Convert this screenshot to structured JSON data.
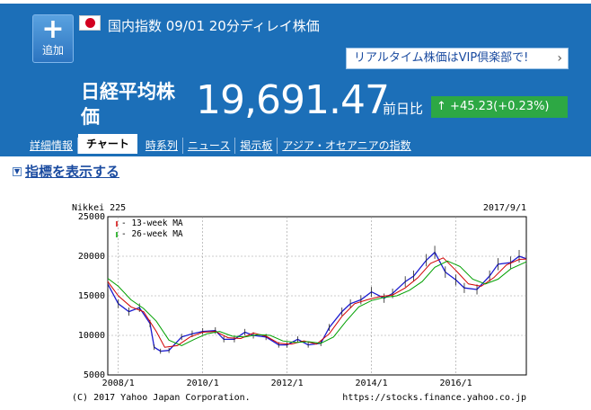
{
  "header": {
    "add_button": {
      "icon": "plus-icon",
      "label": "追加"
    },
    "flag": "japan-flag-icon",
    "title": "国内指数 09/01 20分ディレイ株価",
    "vip_link": "リアルタイム株価はVIP倶楽部で!",
    "stock_name": "日経平均株価",
    "price": "19,691.47",
    "change_label": "前日比",
    "change_value": "+45.23(+0.23%)",
    "change_icon": "up-arrow-icon",
    "colors": {
      "header_bg": "#1c6fb8",
      "badge_bg": "#2da844"
    }
  },
  "tabs": [
    {
      "label": "詳細情報",
      "active": false
    },
    {
      "label": "チャート",
      "active": true
    },
    {
      "label": "時系列",
      "active": false
    },
    {
      "label": "ニュース",
      "active": false
    },
    {
      "label": "掲示板",
      "active": false
    },
    {
      "label": "アジア・オセアニアの指数",
      "active": false
    }
  ],
  "indicator_toggle": {
    "icon": "expand-box-icon",
    "label": "指標を表示する"
  },
  "chart_data": {
    "type": "line",
    "title": "Nikkei 225",
    "date_label": "2017/9/1",
    "copyright": "(C) 2017 Yahoo Japan Corporation.",
    "source_url": "https://stocks.finance.yahoo.co.jp",
    "ylim": [
      5000,
      25000
    ],
    "y_ticks": [
      5000,
      10000,
      15000,
      20000,
      25000
    ],
    "xlim": [
      2007.75,
      2017.67
    ],
    "x_ticks": [
      {
        "x": 2008.0,
        "label": "2008/1"
      },
      {
        "x": 2010.0,
        "label": "2010/1"
      },
      {
        "x": 2012.0,
        "label": "2012/1"
      },
      {
        "x": 2014.0,
        "label": "2014/1"
      },
      {
        "x": 2016.0,
        "label": "2016/1"
      }
    ],
    "legend": [
      {
        "name": "13-week MA",
        "color": "#d00000"
      },
      {
        "name": "26-week MA",
        "color": "#00a000"
      }
    ],
    "legend_position": "top-left",
    "grid": true,
    "series": [
      {
        "name": "Nikkei 225",
        "x": [
          2007.75,
          2008.0,
          2008.25,
          2008.5,
          2008.75,
          2008.85,
          2009.0,
          2009.2,
          2009.5,
          2009.75,
          2010.0,
          2010.3,
          2010.5,
          2010.75,
          2011.0,
          2011.2,
          2011.5,
          2011.8,
          2012.0,
          2012.25,
          2012.5,
          2012.8,
          2013.0,
          2013.3,
          2013.5,
          2013.75,
          2014.0,
          2014.3,
          2014.5,
          2014.8,
          2015.0,
          2015.3,
          2015.5,
          2015.75,
          2016.0,
          2016.2,
          2016.5,
          2016.8,
          2017.0,
          2017.3,
          2017.5,
          2017.67
        ],
        "y": [
          16500,
          14000,
          13000,
          13500,
          11500,
          8500,
          8000,
          8100,
          9800,
          10200,
          10500,
          10600,
          9500,
          9500,
          10400,
          10000,
          9800,
          8800,
          8800,
          9500,
          8800,
          9000,
          11000,
          13000,
          14000,
          14500,
          15500,
          14700,
          15300,
          16800,
          17500,
          19500,
          20500,
          18000,
          17000,
          16000,
          15800,
          17500,
          19000,
          19200,
          20000,
          19691
        ]
      },
      {
        "name": "13-week MA",
        "x": [
          2007.75,
          2008.0,
          2008.3,
          2008.6,
          2008.9,
          2009.1,
          2009.4,
          2009.7,
          2010.0,
          2010.3,
          2010.6,
          2010.9,
          2011.2,
          2011.5,
          2011.8,
          2012.1,
          2012.4,
          2012.7,
          2013.0,
          2013.3,
          2013.6,
          2013.9,
          2014.2,
          2014.5,
          2014.8,
          2015.1,
          2015.4,
          2015.7,
          2016.0,
          2016.3,
          2016.6,
          2016.9,
          2017.2,
          2017.5,
          2017.67
        ],
        "y": [
          16800,
          15000,
          13600,
          13000,
          10500,
          8500,
          8700,
          9800,
          10400,
          10500,
          9700,
          9600,
          10300,
          9900,
          9000,
          8900,
          9300,
          8900,
          10200,
          12400,
          14000,
          14500,
          14900,
          15100,
          16000,
          17300,
          19100,
          19800,
          18200,
          16500,
          16200,
          17300,
          18900,
          19600,
          19650
        ]
      },
      {
        "name": "26-week MA",
        "x": [
          2007.75,
          2008.0,
          2008.3,
          2008.6,
          2008.9,
          2009.2,
          2009.5,
          2009.8,
          2010.1,
          2010.4,
          2010.7,
          2011.0,
          2011.3,
          2011.6,
          2011.9,
          2012.2,
          2012.5,
          2012.8,
          2013.1,
          2013.4,
          2013.7,
          2014.0,
          2014.3,
          2014.6,
          2014.9,
          2015.2,
          2015.5,
          2015.8,
          2016.1,
          2016.4,
          2016.7,
          2017.0,
          2017.3,
          2017.67
        ],
        "y": [
          17200,
          16200,
          14500,
          13400,
          11800,
          9400,
          8700,
          9500,
          10200,
          10500,
          9900,
          9800,
          10100,
          10000,
          9300,
          9100,
          9200,
          9000,
          9800,
          11800,
          13600,
          14400,
          14800,
          15000,
          15700,
          16800,
          18600,
          19400,
          18700,
          17100,
          16500,
          17100,
          18400,
          19300
        ]
      }
    ]
  }
}
